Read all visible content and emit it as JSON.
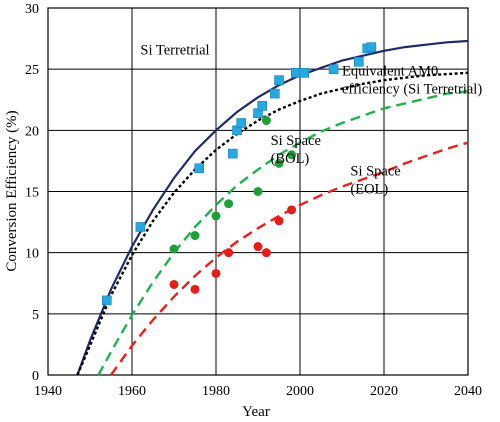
{
  "chart_data": {
    "type": "scatter",
    "xlabel": "Year",
    "ylabel": "Conversion Efficiency (%)",
    "xlim": [
      1940,
      2040
    ],
    "ylim": [
      0,
      30
    ],
    "x_ticks": [
      "1940",
      "1960",
      "1980",
      "2000",
      "2020",
      "2040"
    ],
    "y_ticks": [
      "0",
      "5",
      "10",
      "15",
      "20",
      "25",
      "30"
    ],
    "grid": true,
    "series": [
      {
        "kind": "line",
        "style": "solid",
        "color": "#1f2a6b",
        "x": [
          1947,
          1950,
          1955,
          1960,
          1965,
          1970,
          1975,
          1980,
          1985,
          1990,
          1995,
          2000,
          2005,
          2010,
          2015,
          2020,
          2025,
          2030,
          2035,
          2040
        ],
        "y": [
          0,
          2.8,
          7.0,
          10.5,
          13.5,
          16.1,
          18.3,
          20.0,
          21.5,
          22.7,
          23.7,
          24.5,
          25.1,
          25.7,
          26.1,
          26.5,
          26.8,
          27.0,
          27.2,
          27.3
        ]
      },
      {
        "kind": "line",
        "style": "dotted",
        "color": "#000000",
        "x": [
          1947,
          1950,
          1955,
          1960,
          1965,
          1970,
          1975,
          1980,
          1985,
          1990,
          1995,
          2000,
          2005,
          2010,
          2015,
          2020,
          2025,
          2030,
          2035,
          2040
        ],
        "y": [
          0,
          2.4,
          6.5,
          9.8,
          12.6,
          14.9,
          16.8,
          18.4,
          19.7,
          20.8,
          21.7,
          22.4,
          23.0,
          23.4,
          23.8,
          24.1,
          24.3,
          24.5,
          24.6,
          24.7
        ]
      },
      {
        "kind": "line",
        "style": "dashed",
        "color": "#22b14c",
        "x": [
          1952,
          1955,
          1960,
          1965,
          1970,
          1975,
          1980,
          1985,
          1990,
          1995,
          2000,
          2005,
          2010,
          2015,
          2020,
          2025,
          2030,
          2035,
          2040
        ],
        "y": [
          0,
          1.9,
          4.9,
          7.6,
          10.0,
          12.1,
          13.9,
          15.5,
          16.8,
          18.0,
          19.0,
          19.9,
          20.6,
          21.2,
          21.8,
          22.2,
          22.6,
          23.0,
          23.2
        ]
      },
      {
        "kind": "line",
        "style": "dashed",
        "color": "#e8211a",
        "x": [
          1955,
          1960,
          1965,
          1970,
          1975,
          1980,
          1985,
          1990,
          1995,
          2000,
          2005,
          2010,
          2015,
          2020,
          2025,
          2030,
          2035,
          2040
        ],
        "y": [
          0,
          2.4,
          4.5,
          6.4,
          8.1,
          9.6,
          10.9,
          12.0,
          13.0,
          13.9,
          14.7,
          15.4,
          16.0,
          16.6,
          17.3,
          17.9,
          18.5,
          19.0
        ]
      },
      {
        "kind": "points",
        "marker": "square",
        "color": "#29a8e0",
        "x": [
          1954,
          1962,
          1976,
          1984,
          1985,
          1986,
          1990,
          1991,
          1994,
          1995,
          1999,
          2001,
          2008,
          2014,
          2016,
          2017
        ],
        "y": [
          6.1,
          12.1,
          16.9,
          18.1,
          20.0,
          20.6,
          21.4,
          22.0,
          23.0,
          24.1,
          24.7,
          24.7,
          25.0,
          25.6,
          26.7,
          26.8
        ]
      },
      {
        "kind": "points",
        "marker": "circle",
        "color": "#1f9e3a",
        "x": [
          1970,
          1975,
          1980,
          1983,
          1990,
          1992,
          1995,
          1998
        ],
        "y": [
          10.3,
          11.4,
          13.0,
          14.0,
          15.0,
          20.8,
          17.3,
          18.0
        ]
      },
      {
        "kind": "points",
        "marker": "circle",
        "color": "#e01f1a",
        "x": [
          1970,
          1975,
          1980,
          1983,
          1990,
          1992,
          1995,
          1998
        ],
        "y": [
          7.4,
          7.0,
          8.3,
          10.0,
          10.5,
          10.0,
          12.6,
          13.5
        ]
      }
    ],
    "annotations": [
      {
        "lines": [
          "Si Terretrial"
        ],
        "x": 1962,
        "y": 26.2
      },
      {
        "lines": [
          "Equivalent AM0",
          "efficiency (Si Terretrial)"
        ],
        "x": 2010,
        "y": 24.5
      },
      {
        "lines": [
          "Si Space",
          "(BOL)"
        ],
        "x": 1993,
        "y": 18.8
      },
      {
        "lines": [
          "Si Space",
          "(EOL)"
        ],
        "x": 2012,
        "y": 16.3
      }
    ]
  }
}
